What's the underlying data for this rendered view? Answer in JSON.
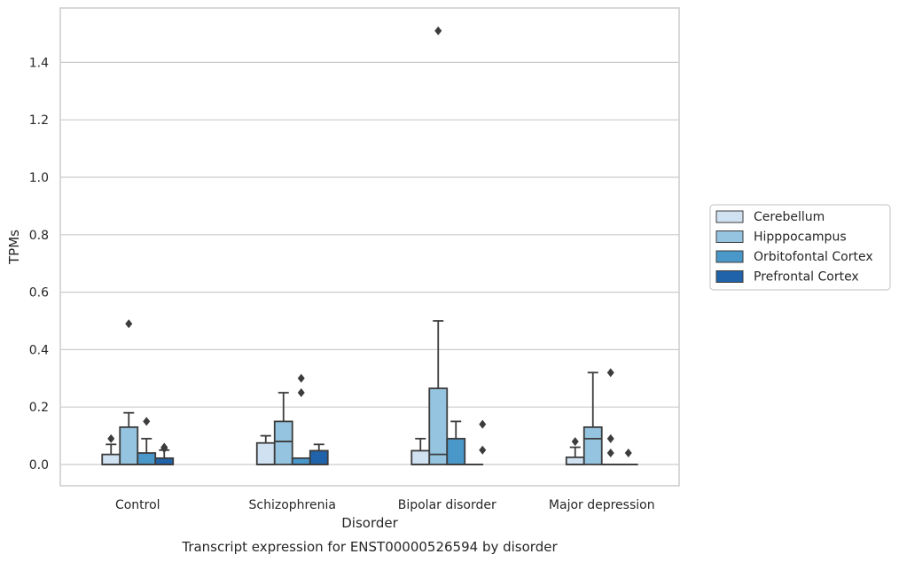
{
  "chart_data": {
    "type": "box",
    "title": "Transcript expression for ENST00000526594 by disorder",
    "xlabel": "Disorder",
    "ylabel": "TPMs",
    "ylim": [
      -0.075,
      1.6
    ],
    "yticks": [
      "0.0",
      "0.2",
      "0.4",
      "0.6",
      "0.8",
      "1.0",
      "1.2",
      "1.4"
    ],
    "grid": "horizontal",
    "legend_position": "right",
    "categories": [
      "Control",
      "Schizophrenia",
      "Bipolar disorder",
      "Major depression"
    ],
    "series": [
      {
        "name": "Cerebellum",
        "color": "#d0e1f2",
        "boxes": [
          {
            "q1": 0.0,
            "median": 0.0,
            "q3": 0.035,
            "whisker_low": 0.0,
            "whisker_high": 0.07,
            "outliers": [
              0.09
            ]
          },
          {
            "q1": 0.0,
            "median": 0.0,
            "q3": 0.075,
            "whisker_low": 0.0,
            "whisker_high": 0.1,
            "outliers": []
          },
          {
            "q1": 0.0,
            "median": 0.0,
            "q3": 0.048,
            "whisker_low": 0.0,
            "whisker_high": 0.09,
            "outliers": []
          },
          {
            "q1": 0.0,
            "median": 0.0,
            "q3": 0.025,
            "whisker_low": 0.0,
            "whisker_high": 0.06,
            "outliers": [
              0.08
            ]
          }
        ]
      },
      {
        "name": "Hipppocampus",
        "color": "#94c4df",
        "boxes": [
          {
            "q1": 0.0,
            "median": 0.0,
            "q3": 0.13,
            "whisker_low": 0.0,
            "whisker_high": 0.18,
            "outliers": [
              0.49
            ]
          },
          {
            "q1": 0.0,
            "median": 0.08,
            "q3": 0.15,
            "whisker_low": 0.0,
            "whisker_high": 0.25,
            "outliers": []
          },
          {
            "q1": 0.0,
            "median": 0.035,
            "q3": 0.265,
            "whisker_low": 0.0,
            "whisker_high": 0.5,
            "outliers": [
              1.51
            ]
          },
          {
            "q1": 0.0,
            "median": 0.09,
            "q3": 0.13,
            "whisker_low": 0.0,
            "whisker_high": 0.32,
            "outliers": []
          }
        ]
      },
      {
        "name": "Orbitofontal Cortex",
        "color": "#4a98c9",
        "boxes": [
          {
            "q1": 0.0,
            "median": 0.0,
            "q3": 0.04,
            "whisker_low": 0.0,
            "whisker_high": 0.09,
            "outliers": [
              0.15
            ]
          },
          {
            "q1": 0.0,
            "median": 0.0,
            "q3": 0.022,
            "whisker_low": 0.0,
            "whisker_high": 0.022,
            "outliers": [
              0.25,
              0.3
            ]
          },
          {
            "q1": 0.0,
            "median": 0.0,
            "q3": 0.09,
            "whisker_low": 0.0,
            "whisker_high": 0.15,
            "outliers": []
          },
          {
            "q1": 0.0,
            "median": 0.0,
            "q3": 0.0,
            "whisker_low": 0.0,
            "whisker_high": 0.0,
            "outliers": [
              0.04,
              0.09,
              0.32
            ]
          }
        ]
      },
      {
        "name": "Prefrontal Cortex",
        "color": "#2163aa",
        "boxes": [
          {
            "q1": 0.0,
            "median": 0.0,
            "q3": 0.022,
            "whisker_low": 0.0,
            "whisker_high": 0.05,
            "outliers": [
              0.06,
              0.055
            ]
          },
          {
            "q1": 0.0,
            "median": 0.0,
            "q3": 0.048,
            "whisker_low": 0.0,
            "whisker_high": 0.07,
            "outliers": []
          },
          {
            "q1": 0.0,
            "median": 0.0,
            "q3": 0.0,
            "whisker_low": 0.0,
            "whisker_high": 0.0,
            "outliers": []
          },
          {
            "q1": 0.0,
            "median": 0.0,
            "q3": 0.0,
            "whisker_low": 0.0,
            "whisker_high": 0.0,
            "outliers": [
              0.04
            ]
          }
        ]
      }
    ],
    "extra_outliers": [
      {
        "category": "Bipolar disorder",
        "series": "Prefrontal Cortex",
        "values": [
          0.05,
          0.14
        ]
      }
    ]
  }
}
